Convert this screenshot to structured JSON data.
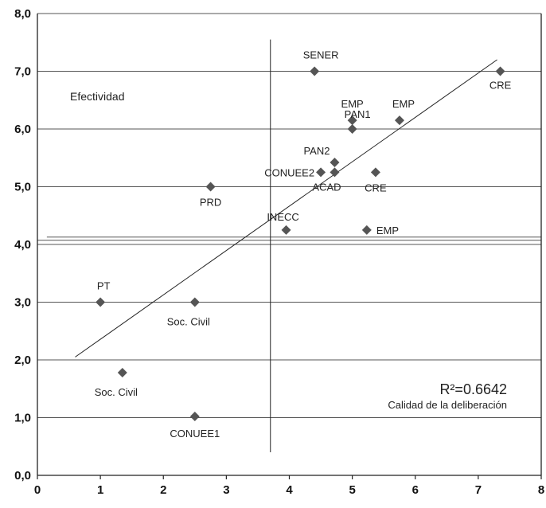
{
  "chart_data": {
    "type": "scatter",
    "title": "",
    "xlabel": "",
    "ylabel": "",
    "xlim": [
      0,
      8
    ],
    "ylim": [
      0,
      8
    ],
    "x_ticks": [
      "0",
      "1",
      "2",
      "3",
      "4",
      "5",
      "6",
      "7",
      "8"
    ],
    "y_ticks": [
      "0,0",
      "1,0",
      "2,0",
      "3,0",
      "4,0",
      "5,0",
      "6,0",
      "7,0",
      "8,0"
    ],
    "grid": "horizontal",
    "colors": {
      "marker": "#555555",
      "axis": "#222222",
      "grid": "#555555"
    },
    "points": [
      {
        "label": "SENER",
        "x": 4.4,
        "y": 7.0
      },
      {
        "label": "CRE",
        "x": 7.35,
        "y": 7.0
      },
      {
        "label": "EMP",
        "x": 5.0,
        "y": 6.15
      },
      {
        "label": "EMP",
        "x": 5.75,
        "y": 6.15
      },
      {
        "label": "PAN1",
        "x": 5.0,
        "y": 6.0
      },
      {
        "label": "PAN2",
        "x": 4.72,
        "y": 5.42
      },
      {
        "label": "CONUEE2",
        "x": 4.5,
        "y": 5.25
      },
      {
        "label": "ACAD",
        "x": 4.72,
        "y": 5.25
      },
      {
        "label": "CRE",
        "x": 5.37,
        "y": 5.25
      },
      {
        "label": "PRD",
        "x": 2.75,
        "y": 5.0
      },
      {
        "label": "INECC",
        "x": 3.95,
        "y": 4.25
      },
      {
        "label": "EMP",
        "x": 5.23,
        "y": 4.25
      },
      {
        "label": "PT",
        "x": 1.0,
        "y": 3.0
      },
      {
        "label": "Soc. Civil",
        "x": 2.5,
        "y": 3.0
      },
      {
        "label": "Soc. Civil",
        "x": 1.35,
        "y": 1.78
      },
      {
        "label": "CONUEE1",
        "x": 2.5,
        "y": 1.02
      }
    ],
    "trendline": {
      "x": [
        0.6,
        7.3
      ],
      "y": [
        2.05,
        7.2
      ]
    },
    "vertical_divider_x": 3.7,
    "vertical_divider_y": [
      0.4,
      7.55
    ],
    "horizontal_divider_y": 4.1,
    "annotations": {
      "quadrant_label": "Efectividad",
      "r2_label": "R²=0.6642",
      "axis_note": "Calidad de la deliberación"
    }
  }
}
